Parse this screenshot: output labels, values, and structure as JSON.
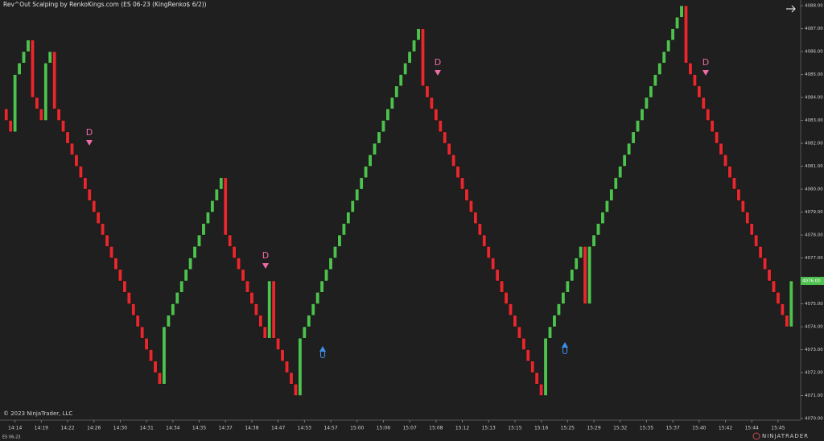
{
  "chart_data": {
    "type": "renko",
    "title": "Rev^Out Scalping by RenkoKings.com (ES 06-23 (KingRenko$ 6/2))",
    "copyright": "© 2023 NinjaTrader, LLC",
    "instrument": "ES 06-23",
    "brand": "NINJATRADER",
    "up_color": "#4ec24e",
    "down_color": "#e8282d",
    "categories": [
      null,
      null,
      "14:14",
      null,
      null,
      null,
      null,
      null,
      "14:19",
      null,
      null,
      null,
      null,
      null,
      "14:22",
      null,
      null,
      null,
      null,
      null,
      "14:26",
      null,
      null,
      null,
      null,
      null,
      "14:30",
      null,
      null,
      null,
      null,
      null,
      "14:31",
      null,
      null,
      null,
      null,
      null,
      "14:34",
      null,
      null,
      null,
      null,
      null,
      "14:35",
      null,
      null,
      null,
      null,
      null,
      "14:37",
      null,
      null,
      null,
      null,
      null,
      "14:38",
      null,
      null,
      null,
      null,
      null,
      "14:47",
      null,
      null,
      null,
      null,
      null,
      "14:53",
      null,
      null,
      null,
      null,
      null,
      "14:57",
      null,
      null,
      null,
      null,
      null,
      "15:00",
      null,
      null,
      null,
      null,
      null,
      "15:06",
      null,
      null,
      null,
      null,
      null,
      "15:07",
      null,
      null,
      null,
      null,
      null,
      "15:08",
      null,
      null,
      null,
      null,
      null,
      "15:12",
      null,
      null,
      null,
      null,
      null,
      "15:13",
      null,
      null,
      null,
      null,
      null,
      "15:15",
      null,
      null,
      null,
      null,
      null,
      "15:16",
      null,
      null,
      null,
      null,
      null,
      "15:25",
      null,
      null,
      null,
      null,
      null,
      "15:29",
      null,
      null,
      null,
      null,
      null,
      "15:32",
      null,
      null,
      null,
      null,
      null,
      "15:35",
      null,
      null,
      null,
      null,
      null,
      "15:37",
      null,
      null,
      null,
      null,
      null,
      "15:40",
      null,
      null,
      null,
      null,
      null,
      "15:42",
      null,
      null,
      null,
      null,
      null,
      "15:44",
      null,
      null,
      null,
      null,
      null,
      "15:45",
      null,
      null,
      null
    ],
    "open": [
      4083.5,
      4083,
      4082.5,
      4085,
      4085.5,
      4086,
      4086.5,
      4084,
      4083.5,
      4083,
      4085.5,
      4086,
      4083.5,
      4083,
      4082.5,
      4082,
      4081.5,
      4081,
      4080.5,
      4080,
      4079.5,
      4079,
      4078.5,
      4078,
      4077.5,
      4077,
      4076.5,
      4076,
      4075.5,
      4075,
      4074.5,
      4074,
      4073.5,
      4073,
      4072.5,
      4072,
      4071.5,
      4074,
      4074.5,
      4075,
      4075.5,
      4076,
      4076.5,
      4077,
      4077.5,
      4078,
      4078.5,
      4079,
      4079.5,
      4080,
      4080.5,
      4078,
      4077.5,
      4077,
      4076.5,
      4076,
      4075.5,
      4075,
      4074.5,
      4074,
      4073.5,
      4076,
      4073.5,
      4073,
      4072.5,
      4072,
      4071.5,
      4071,
      4073.5,
      4074,
      4074.5,
      4075,
      4075.5,
      4076,
      4076.5,
      4077,
      4077.5,
      4078,
      4078.5,
      4079,
      4079.5,
      4080,
      4080.5,
      4081,
      4081.5,
      4082,
      4082.5,
      4083,
      4083.5,
      4084,
      4084.5,
      4085,
      4085.5,
      4086,
      4086.5,
      4087,
      4084.5,
      4084,
      4083.5,
      4083,
      4082.5,
      4082,
      4081.5,
      4081,
      4080.5,
      4080,
      4079.5,
      4079,
      4078.5,
      4078,
      4077.5,
      4077,
      4076.5,
      4076,
      4075.5,
      4075,
      4074.5,
      4074,
      4073.5,
      4073,
      4072.5,
      4072,
      4071.5,
      4071,
      4073.5,
      4074,
      4074.5,
      4075,
      4075.5,
      4076,
      4076.5,
      4077,
      4077.5,
      4075,
      4077.5,
      4078,
      4078.5,
      4079,
      4079.5,
      4080,
      4080.5,
      4081,
      4081.5,
      4082,
      4082.5,
      4083,
      4083.5,
      4084,
      4084.5,
      4085,
      4085.5,
      4086,
      4086.5,
      4087,
      4087.5,
      4088,
      4085.5,
      4085,
      4084.5,
      4084,
      4083.5,
      4083,
      4082.5,
      4082,
      4081.5,
      4081,
      4080.5,
      4080,
      4079.5,
      4079,
      4078.5,
      4078,
      4077.5,
      4077,
      4076.5,
      4076,
      4075.5,
      4075,
      4074.5,
      4074
    ],
    "close": [
      4083,
      4082.5,
      4085,
      4085.5,
      4086,
      4086.5,
      4084,
      4083.5,
      4083,
      4085.5,
      4086,
      4083.5,
      4083,
      4082.5,
      4082,
      4081.5,
      4081,
      4080.5,
      4080,
      4079.5,
      4079,
      4078.5,
      4078,
      4077.5,
      4077,
      4076.5,
      4076,
      4075.5,
      4075,
      4074.5,
      4074,
      4073.5,
      4073,
      4072.5,
      4072,
      4071.5,
      4074,
      4074.5,
      4075,
      4075.5,
      4076,
      4076.5,
      4077,
      4077.5,
      4078,
      4078.5,
      4079,
      4079.5,
      4080,
      4080.5,
      4078,
      4077.5,
      4077,
      4076.5,
      4076,
      4075.5,
      4075,
      4074.5,
      4074,
      4073.5,
      4076,
      4073.5,
      4073,
      4072.5,
      4072,
      4071.5,
      4071,
      4073.5,
      4074,
      4074.5,
      4075,
      4075.5,
      4076,
      4076.5,
      4077,
      4077.5,
      4078,
      4078.5,
      4079,
      4079.5,
      4080,
      4080.5,
      4081,
      4081.5,
      4082,
      4082.5,
      4083,
      4083.5,
      4084,
      4084.5,
      4085,
      4085.5,
      4086,
      4086.5,
      4087,
      4084.5,
      4084,
      4083.5,
      4083,
      4082.5,
      4082,
      4081.5,
      4081,
      4080.5,
      4080,
      4079.5,
      4079,
      4078.5,
      4078,
      4077.5,
      4077,
      4076.5,
      4076,
      4075.5,
      4075,
      4074.5,
      4074,
      4073.5,
      4073,
      4072.5,
      4072,
      4071.5,
      4071,
      4073.5,
      4074,
      4074.5,
      4075,
      4075.5,
      4076,
      4076.5,
      4077,
      4077.5,
      4075,
      4077.5,
      4078,
      4078.5,
      4079,
      4079.5,
      4080,
      4080.5,
      4081,
      4081.5,
      4082,
      4082.5,
      4083,
      4083.5,
      4084,
      4084.5,
      4085,
      4085.5,
      4086,
      4086.5,
      4087,
      4087.5,
      4088,
      4085.5,
      4085,
      4084.5,
      4084,
      4083.5,
      4083,
      4082.5,
      4082,
      4081.5,
      4081,
      4080.5,
      4080,
      4079.5,
      4079,
      4078.5,
      4078,
      4077.5,
      4077,
      4076.5,
      4076,
      4075.5,
      4075,
      4074.5,
      4074,
      4076
    ],
    "annotations": [
      "D",
      "D",
      "U",
      "D",
      "U",
      "D"
    ],
    "last_price": {
      "value": 4076,
      "label": "4076.00"
    },
    "ylim": [
      4069.93,
      4088.25
    ],
    "yticks": [
      {
        "value": 4070,
        "label": "4070.00"
      },
      {
        "value": 4071,
        "label": "4071.00"
      },
      {
        "value": 4072,
        "label": "4072.00"
      },
      {
        "value": 4073,
        "label": "4073.00"
      },
      {
        "value": 4074,
        "label": "4074.00"
      },
      {
        "value": 4075,
        "label": "4075.00"
      },
      {
        "value": 4076,
        "label": "4076.00"
      },
      {
        "value": 4077,
        "label": "4077.00"
      },
      {
        "value": 4078,
        "label": "4078.00"
      },
      {
        "value": 4079,
        "label": "4079.00"
      },
      {
        "value": 4080,
        "label": "4080.00"
      },
      {
        "value": 4081,
        "label": "4081.00"
      },
      {
        "value": 4082,
        "label": "4082.00"
      },
      {
        "value": 4083,
        "label": "4083.00"
      },
      {
        "value": 4084,
        "label": "4084.00"
      },
      {
        "value": 4085,
        "label": "4085.00"
      },
      {
        "value": 4086,
        "label": "4086.00"
      },
      {
        "value": 4087,
        "label": "4087.00"
      },
      {
        "value": 4088,
        "label": "4088.00"
      }
    ]
  }
}
